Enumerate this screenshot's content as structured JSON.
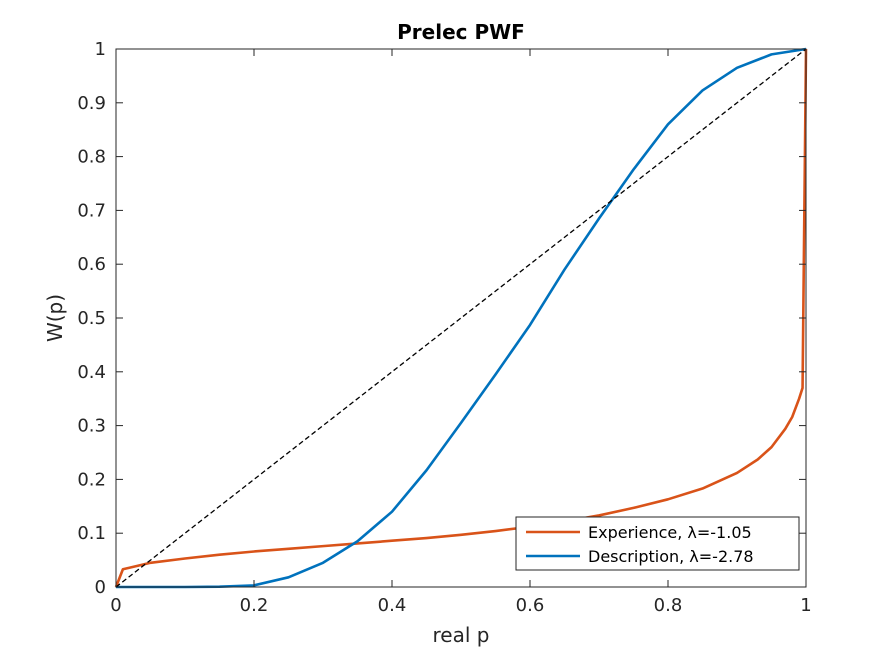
{
  "chart_data": {
    "type": "line",
    "title": "Prelec PWF",
    "xlabel": "real p",
    "ylabel": "W(p)",
    "xlim": [
      0,
      1
    ],
    "ylim": [
      0,
      1
    ],
    "xticks": [
      "0",
      "0.2",
      "0.4",
      "0.6",
      "0.8",
      "1"
    ],
    "yticks": [
      "0",
      "0.1",
      "0.2",
      "0.3",
      "0.4",
      "0.5",
      "0.6",
      "0.7",
      "0.8",
      "0.9",
      "1"
    ],
    "grid": false,
    "legend_position": "bottom-right",
    "series": [
      {
        "name": "Experience, λ=-1.05",
        "color": "#d95319",
        "x": [
          0,
          0.01,
          0.05,
          0.1,
          0.15,
          0.2,
          0.25,
          0.3,
          0.35,
          0.4,
          0.45,
          0.5,
          0.55,
          0.6,
          0.65,
          0.7,
          0.75,
          0.8,
          0.85,
          0.9,
          0.93,
          0.95,
          0.97,
          0.98,
          0.99,
          0.995,
          1.0
        ],
        "y": [
          0,
          0.033,
          0.045,
          0.053,
          0.06,
          0.066,
          0.071,
          0.076,
          0.081,
          0.086,
          0.091,
          0.097,
          0.104,
          0.112,
          0.122,
          0.133,
          0.147,
          0.163,
          0.183,
          0.212,
          0.237,
          0.26,
          0.294,
          0.316,
          0.35,
          0.37,
          1.0
        ]
      },
      {
        "name": "Description, λ=-2.78",
        "color": "#0072bd",
        "x": [
          0,
          0.1,
          0.15,
          0.2,
          0.25,
          0.3,
          0.35,
          0.4,
          0.45,
          0.5,
          0.55,
          0.6,
          0.65,
          0.7,
          0.75,
          0.8,
          0.85,
          0.9,
          0.95,
          1.0
        ],
        "y": [
          0,
          0,
          0.0005,
          0.003,
          0.018,
          0.045,
          0.085,
          0.14,
          0.217,
          0.305,
          0.395,
          0.487,
          0.59,
          0.685,
          0.776,
          0.86,
          0.923,
          0.965,
          0.99,
          1.0
        ]
      },
      {
        "name": "",
        "color": "#000000",
        "style": "dashed",
        "x": [
          0,
          1
        ],
        "y": [
          0,
          1
        ]
      }
    ]
  }
}
